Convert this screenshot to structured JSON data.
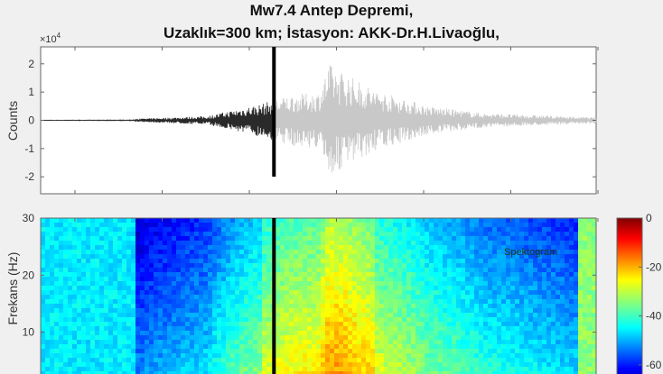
{
  "title_line1": "Mw7.4 Antep Depremi,",
  "title_line2": "Uzaklık=300 km; İstasyon: AKK-Dr.H.Livaoğlu,",
  "chart_data": [
    {
      "type": "line",
      "ylabel": "Counts",
      "y_exponent_label": "×10",
      "y_exponent": "4",
      "ylim": [
        -2.6,
        2.6
      ],
      "yticks": [
        "2",
        "1",
        "0",
        "-1",
        "-2"
      ],
      "ytick_values": [
        2,
        1,
        0,
        -1,
        -2
      ],
      "grid": false,
      "envelope": {
        "time_fraction": [
          0,
          0.17,
          0.3,
          0.4,
          0.45,
          0.5,
          0.52,
          0.6,
          0.7,
          0.8,
          1.0
        ],
        "amplitude_x1e4": [
          0.02,
          0.05,
          0.15,
          0.6,
          0.9,
          1.0,
          2.0,
          1.1,
          0.5,
          0.25,
          0.1
        ]
      },
      "marker_fraction": 0.42,
      "series_colors": {
        "before_marker": "#2a2a2a",
        "after_marker": "#c8c8c8"
      }
    },
    {
      "type": "heatmap",
      "ylabel": "Frekans (Hz)",
      "ylim": [
        0,
        30
      ],
      "yticks": [
        "30",
        "20",
        "10"
      ],
      "ytick_values": [
        30,
        20,
        10
      ],
      "annotation": "Spektogram",
      "colorbar": {
        "ticks": [
          "0",
          "-20",
          "-40",
          "-60"
        ],
        "tick_values": [
          0,
          -20,
          -40,
          -60
        ],
        "range": [
          -70,
          0
        ],
        "colormap": "jet"
      },
      "marker_fraction": 0.42
    }
  ]
}
